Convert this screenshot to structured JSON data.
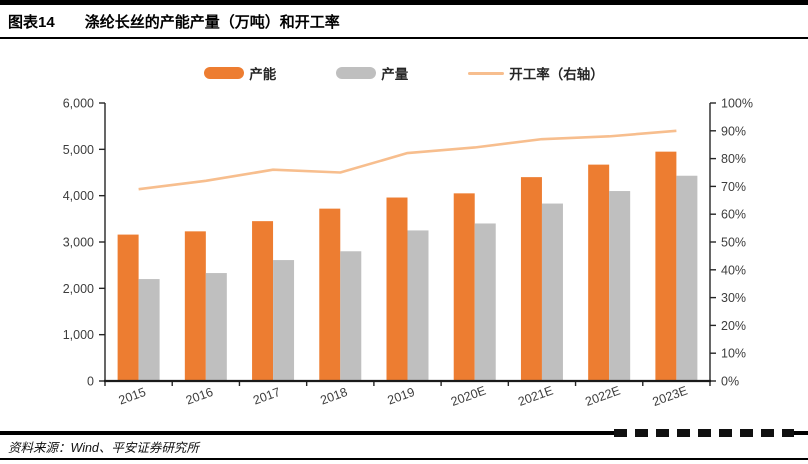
{
  "header": {
    "tag": "图表14",
    "title": "涤纶长丝的产能产量（万吨）和开工率"
  },
  "legend": [
    {
      "label": "产能",
      "type": "bar",
      "color": "#ED7D31"
    },
    {
      "label": "产量",
      "type": "bar",
      "color": "#BFBFBF"
    },
    {
      "label": "开工率（右轴）",
      "type": "line",
      "color": "#F7BE8E"
    }
  ],
  "chart_data": {
    "type": "bar",
    "subtype": "grouped bars with overlay line on secondary axis",
    "title": "涤纶长丝的产能产量（万吨）和开工率",
    "categories": [
      "2015",
      "2016",
      "2017",
      "2018",
      "2019",
      "2020E",
      "2021E",
      "2022E",
      "2023E"
    ],
    "series": [
      {
        "name": "产能",
        "type": "bar",
        "axis": "left",
        "color": "#ED7D31",
        "values": [
          3160,
          3230,
          3450,
          3720,
          3960,
          4050,
          4400,
          4670,
          4950
        ]
      },
      {
        "name": "产量",
        "type": "bar",
        "axis": "left",
        "color": "#BFBFBF",
        "values": [
          2200,
          2330,
          2610,
          2800,
          3250,
          3400,
          3830,
          4100,
          4430
        ]
      },
      {
        "name": "开工率（右轴）",
        "type": "line",
        "axis": "right",
        "color": "#F7BE8E",
        "values": [
          69,
          72,
          76,
          75,
          82,
          84,
          87,
          88,
          90
        ]
      }
    ],
    "left_axis": {
      "min": 0,
      "max": 6000,
      "step": 1000,
      "tick_labels": [
        "0",
        "1,000",
        "2,000",
        "3,000",
        "4,000",
        "5,000",
        "6,000"
      ]
    },
    "right_axis": {
      "min": 0,
      "max": 100,
      "step": 10,
      "unit": "%",
      "tick_labels": [
        "0%",
        "10%",
        "20%",
        "30%",
        "40%",
        "50%",
        "60%",
        "70%",
        "80%",
        "90%",
        "100%"
      ]
    },
    "grid": false,
    "legend_position": "top"
  },
  "footer": {
    "source": "资料来源：Wind、平安证券研究所"
  }
}
